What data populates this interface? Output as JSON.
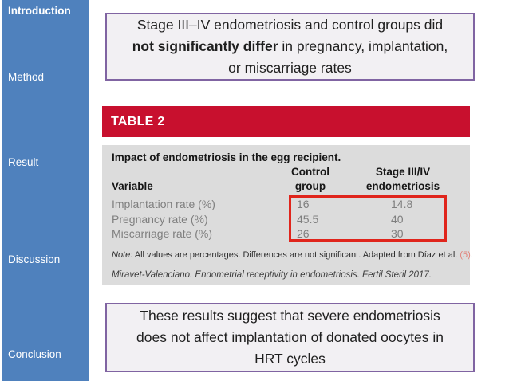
{
  "colors": {
    "sidebar_blue": "#4f81bd",
    "table_header_red": "#c8102e",
    "highlight_red": "#e0251c",
    "callout_border_purple": "#8064a2",
    "callout_bg": "#f2f0f3",
    "table_body_gray": "#dcdcdc",
    "row_text_gray": "#7f7f7f",
    "citation_salmon": "#e2837b"
  },
  "sidebar": {
    "items": [
      {
        "label": "Introduction",
        "active": true
      },
      {
        "label": "Method",
        "active": false
      },
      {
        "label": "Result",
        "active": false
      },
      {
        "label": "Discussion",
        "active": false
      },
      {
        "label": "Conclusion",
        "active": false
      }
    ]
  },
  "top_box": {
    "line1": "Stage III–IV endometriosis and control groups did",
    "line2_bold": "not significantly differ",
    "line2_rest": " in pregnancy, implantation,",
    "line3": "or miscarriage rates"
  },
  "table": {
    "title": "TABLE 2",
    "caption": "Impact of endometriosis in the egg recipient.",
    "columns": {
      "variable": "Variable",
      "control_line1": "Control",
      "control_line2": "group",
      "stage_line1": "Stage III/IV",
      "stage_line2": "endometriosis"
    },
    "rows": [
      {
        "variable": "Implantation rate (%)",
        "control": "16",
        "stage": "14.8"
      },
      {
        "variable": "Pregnancy rate (%)",
        "control": "45.5",
        "stage": "40"
      },
      {
        "variable": "Miscarriage rate (%)",
        "control": "26",
        "stage": "30"
      }
    ],
    "note": {
      "label": "Note:",
      "body": " All values are percentages. Differences are not significant. Adapted from Díaz et al. ",
      "citation": "(5)",
      "suffix": "."
    },
    "source": "Miravet-Valenciano. Endometrial receptivity in endometriosis. Fertil Steril 2017."
  },
  "bottom_box": {
    "line1": "These results suggest that severe endometriosis",
    "line2": "does not affect implantation of donated oocytes in",
    "line3": "HRT cycles"
  }
}
